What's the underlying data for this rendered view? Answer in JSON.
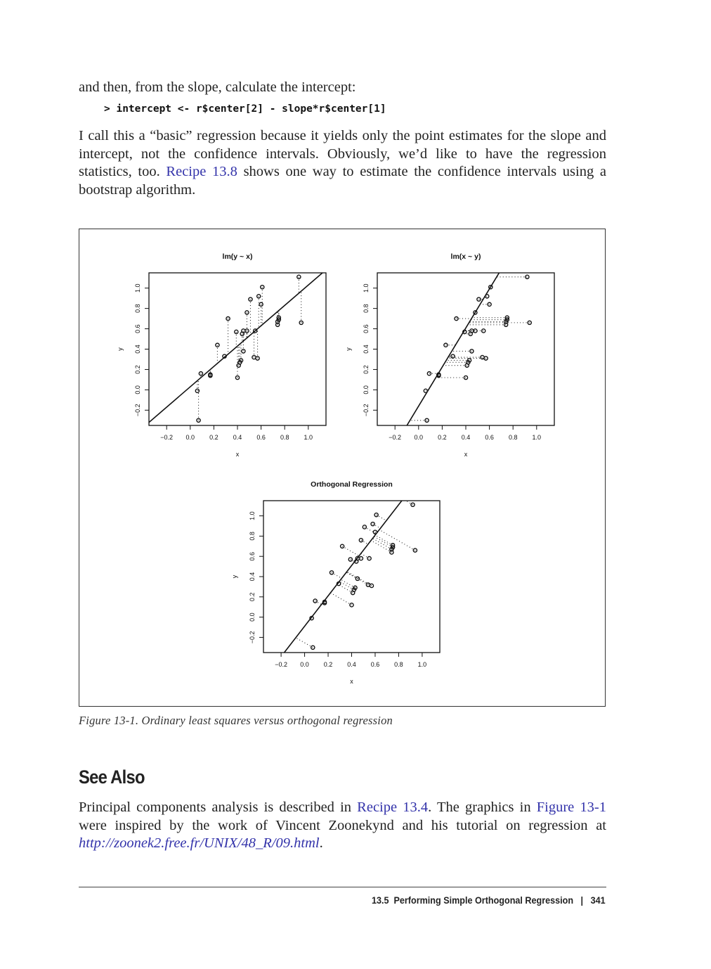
{
  "intro_line": "and then, from the slope, calculate the intercept:",
  "code_line": "> intercept <- r$center[2] - slope*r$center[1]",
  "paragraph1": {
    "before_link": "I call this a “basic” regression because it yields only the point estimates for the slope and intercept, not the confidence intervals. Obviously, we’d like to have the regression statistics, too. ",
    "link": "Recipe 13.8",
    "after_link": " shows one way to estimate the confidence intervals using a bootstrap algorithm."
  },
  "figure_caption": "Figure 13-1. Ordinary least squares versus orthogonal regression",
  "section_heading": "See Also",
  "paragraph2": {
    "part1": "Principal components analysis is described in ",
    "link1": "Recipe 13.4",
    "part2": ". The graphics in ",
    "link2": "Figure 13-1",
    "part3": " were inspired by the work of Vincent Zoonekynd and his tutorial on regression at ",
    "url": "http://zoonek2.free.fr/UNIX/48_R/09.html",
    "part4": "."
  },
  "footer": {
    "section": "13.5  Performing Simple Orthogonal Regression",
    "separator": "|",
    "page_number": "341"
  },
  "chart_data": [
    {
      "type": "scatter",
      "title": "lm(y ~ x)",
      "xlabel": "x",
      "ylabel": "y",
      "xlim": [
        -0.35,
        1.15
      ],
      "ylim": [
        -0.35,
        1.15
      ],
      "xticks": [
        "-0.2",
        "0.0",
        "0.2",
        "0.4",
        "0.6",
        "0.8",
        "1.0"
      ],
      "yticks": [
        "-0.2",
        "0.0",
        "0.2",
        "0.4",
        "0.6",
        "0.8",
        "1.0"
      ],
      "fit_line": {
        "intercept": 0.03,
        "slope": 1.0
      },
      "residuals": "vertical",
      "points": [
        [
          0.07,
          -0.3
        ],
        [
          0.06,
          -0.01
        ],
        [
          0.09,
          0.16
        ],
        [
          0.17,
          0.14
        ],
        [
          0.17,
          0.15
        ],
        [
          0.23,
          0.44
        ],
        [
          0.29,
          0.33
        ],
        [
          0.32,
          0.7
        ],
        [
          0.39,
          0.57
        ],
        [
          0.4,
          0.12
        ],
        [
          0.41,
          0.24
        ],
        [
          0.42,
          0.27
        ],
        [
          0.43,
          0.29
        ],
        [
          0.44,
          0.55
        ],
        [
          0.45,
          0.38
        ],
        [
          0.45,
          0.58
        ],
        [
          0.48,
          0.76
        ],
        [
          0.48,
          0.58
        ],
        [
          0.51,
          0.89
        ],
        [
          0.54,
          0.32
        ],
        [
          0.55,
          0.58
        ],
        [
          0.57,
          0.31
        ],
        [
          0.58,
          0.92
        ],
        [
          0.6,
          0.84
        ],
        [
          0.61,
          1.01
        ],
        [
          0.74,
          0.64
        ],
        [
          0.74,
          0.67
        ],
        [
          0.75,
          0.69
        ],
        [
          0.75,
          0.71
        ],
        [
          0.92,
          1.11
        ],
        [
          0.94,
          0.66
        ]
      ]
    },
    {
      "type": "scatter",
      "title": "lm(x ~ y)",
      "xlabel": "x",
      "ylabel": "y",
      "xlim": [
        -0.35,
        1.15
      ],
      "ylim": [
        -0.35,
        1.15
      ],
      "xticks": [
        "-0.2",
        "0.0",
        "0.2",
        "0.4",
        "0.6",
        "0.8",
        "1.0"
      ],
      "yticks": [
        "-0.2",
        "0.0",
        "0.2",
        "0.4",
        "0.6",
        "0.8",
        "1.0"
      ],
      "fit_line": {
        "intercept": -0.16,
        "slope": 1.92
      },
      "residuals": "horizontal",
      "points": "same as lm(y ~ x)"
    },
    {
      "type": "scatter",
      "title": "Orthogonal Regression",
      "xlabel": "x",
      "ylabel": "y",
      "xlim": [
        -0.35,
        1.15
      ],
      "ylim": [
        -0.35,
        1.15
      ],
      "xticks": [
        "-0.2",
        "0.0",
        "0.2",
        "0.4",
        "0.6",
        "0.8",
        "1.0"
      ],
      "yticks": [
        "-0.2",
        "0.0",
        "0.2",
        "0.4",
        "0.6",
        "0.8",
        "1.0"
      ],
      "fit_line": {
        "intercept": -0.09,
        "slope": 1.5
      },
      "residuals": "orthogonal",
      "points": "same as lm(y ~ x)"
    }
  ]
}
